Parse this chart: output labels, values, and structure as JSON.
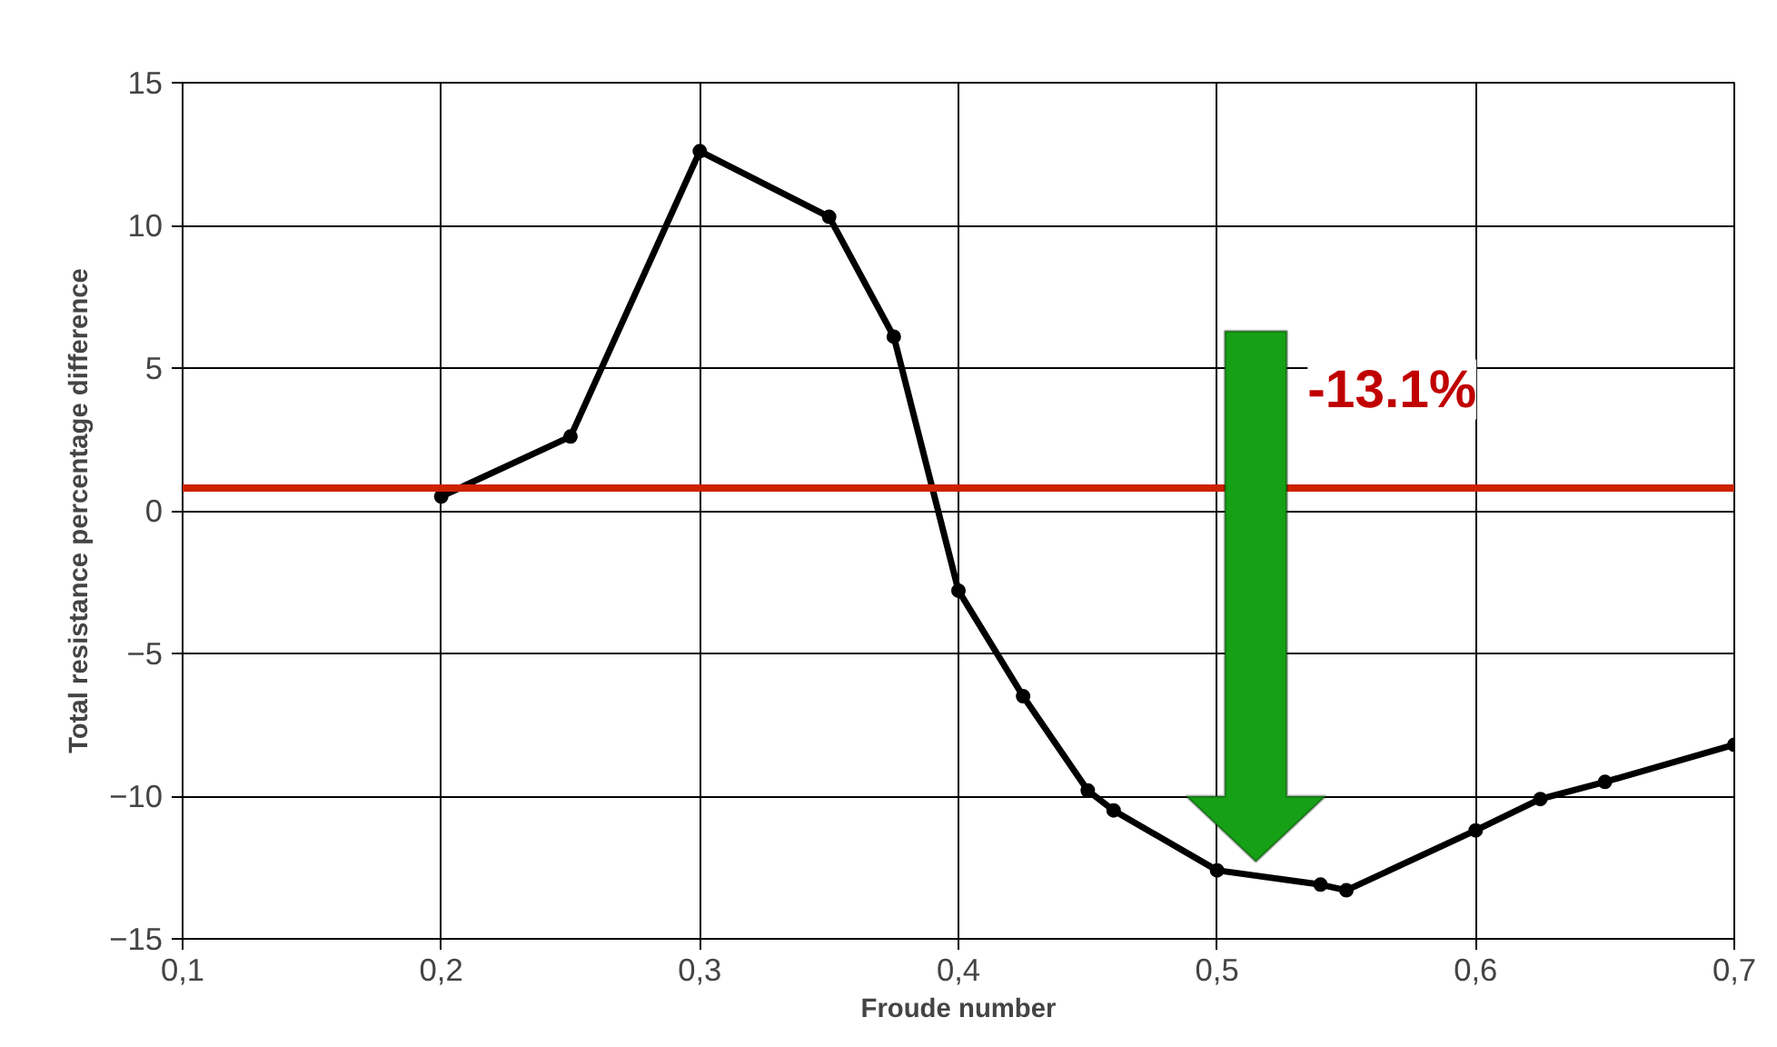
{
  "chart_data": {
    "type": "line",
    "xlabel": "Froude number",
    "ylabel": "Total resistance percentage difference",
    "xlim": [
      0.1,
      0.7
    ],
    "ylim": [
      -15,
      15
    ],
    "xticks": [
      {
        "value": 0.1,
        "label": "0,1"
      },
      {
        "value": 0.2,
        "label": "0,2"
      },
      {
        "value": 0.3,
        "label": "0,3"
      },
      {
        "value": 0.4,
        "label": "0,4"
      },
      {
        "value": 0.5,
        "label": "0,5"
      },
      {
        "value": 0.6,
        "label": "0,6"
      },
      {
        "value": 0.7,
        "label": "0,7"
      }
    ],
    "yticks": [
      -15,
      -10,
      -5,
      0,
      5,
      10,
      15
    ],
    "series": [
      {
        "color": "#000000",
        "x": [
          0.2,
          0.25,
          0.3,
          0.35,
          0.375,
          0.4,
          0.425,
          0.45,
          0.46,
          0.5,
          0.54,
          0.55,
          0.6,
          0.625,
          0.65,
          0.7
        ],
        "values": [
          0.5,
          2.6,
          12.6,
          10.3,
          6.1,
          -2.8,
          -6.5,
          -9.8,
          -10.5,
          -12.6,
          -13.1,
          -13.3,
          -11.2,
          -10.1,
          -9.5,
          -8.2
        ]
      }
    ],
    "ref_lines": [
      {
        "axis": "y",
        "value": 0.8,
        "color": "#cc2200"
      }
    ],
    "annotations": [
      "-13.1%"
    ],
    "grid": true,
    "marker": "circle",
    "line_style": "solid"
  }
}
